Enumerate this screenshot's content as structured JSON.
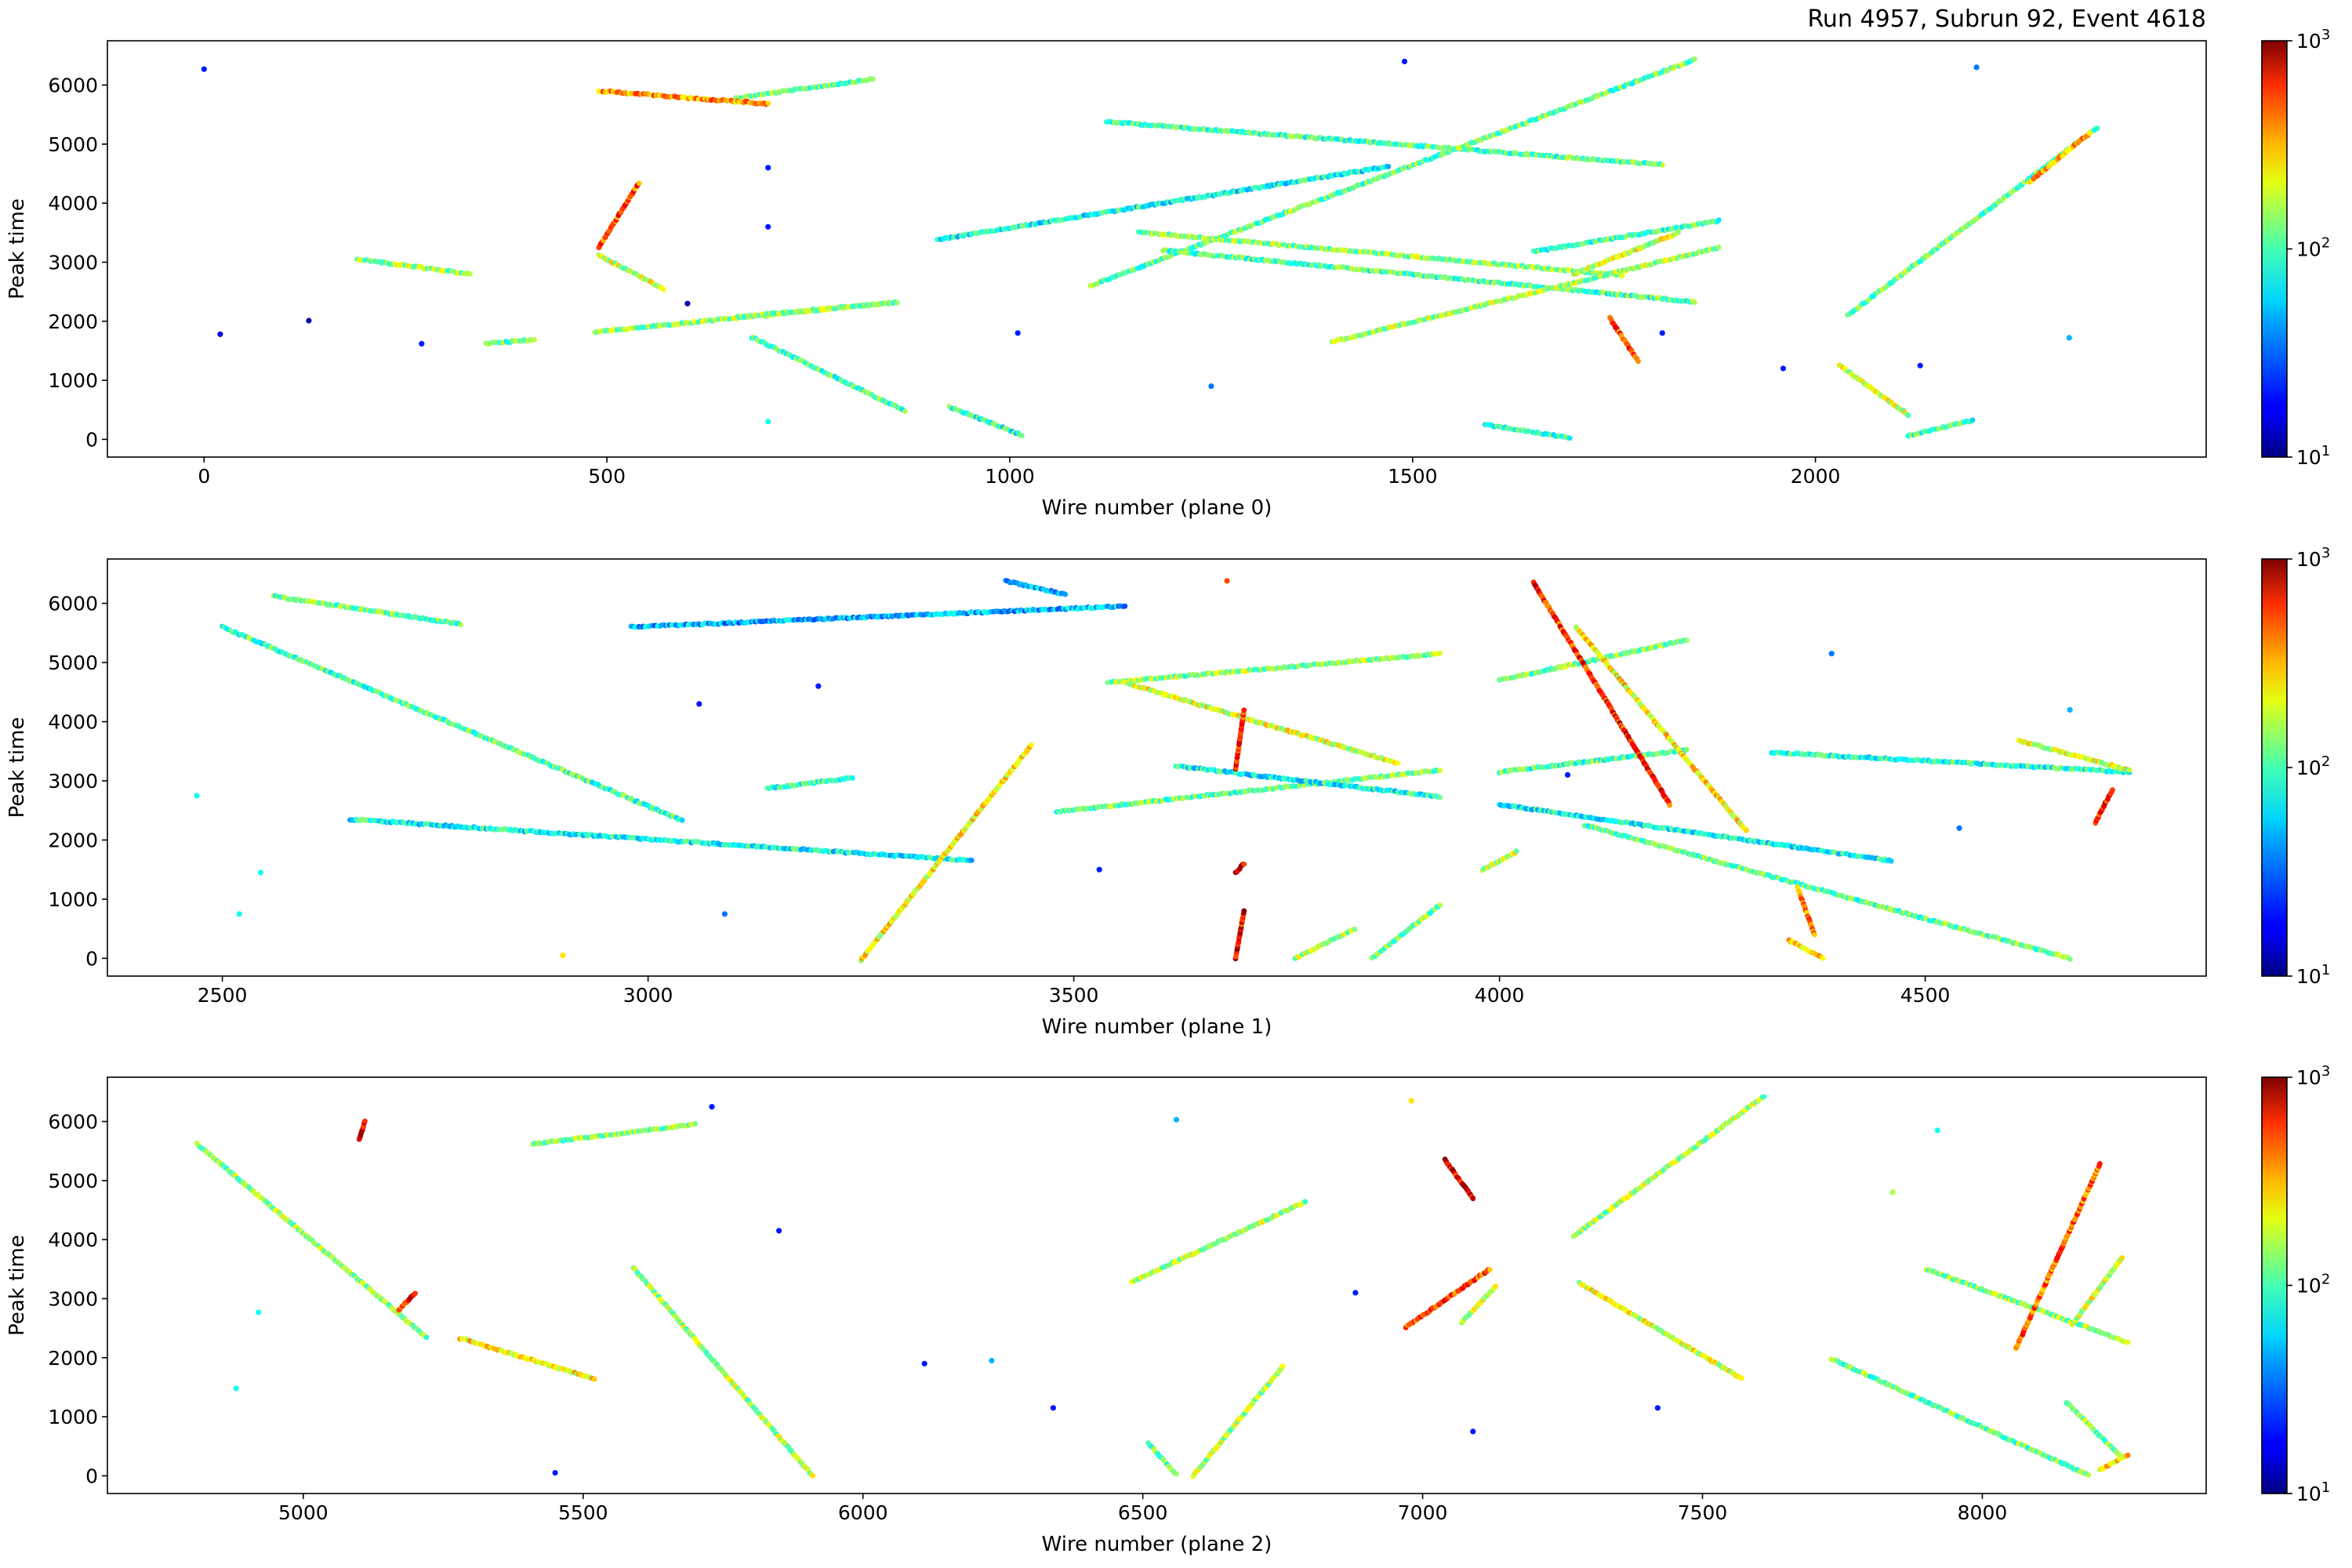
{
  "figure": {
    "title": "Run 4957, Subrun 92, Event 4618"
  },
  "colorbar": {
    "colormap": "jet",
    "scale": "log",
    "range": [
      10,
      1000
    ],
    "tick_labels": [
      {
        "value": 10,
        "base": "10",
        "exp": "1"
      },
      {
        "value": 100,
        "base": "10",
        "exp": "2"
      },
      {
        "value": 1000,
        "base": "10",
        "exp": "3"
      }
    ]
  },
  "chart_data": [
    {
      "type": "scatter",
      "plane": 0,
      "xlabel": "Wire number (plane 0)",
      "ylabel": "Peak time",
      "xlim": [
        -120,
        2485
      ],
      "ylim": [
        -300,
        6750
      ],
      "xticks": [
        0,
        500,
        1000,
        1500,
        2000
      ],
      "yticks": [
        0,
        1000,
        2000,
        3000,
        4000,
        5000,
        6000
      ],
      "tracks": [
        {
          "from": [
            660,
            5780
          ],
          "to": [
            830,
            6100
          ],
          "charge": 90
        },
        {
          "from": [
            1120,
            5380
          ],
          "to": [
            1810,
            4650
          ],
          "charge": 80
        },
        {
          "from": [
            1100,
            2600
          ],
          "to": [
            1850,
            6430
          ],
          "charge": 90
        },
        {
          "from": [
            910,
            3380
          ],
          "to": [
            1470,
            4620
          ],
          "charge": 60
        },
        {
          "from": [
            1160,
            3510
          ],
          "to": [
            1760,
            2780
          ],
          "charge": 110
        },
        {
          "from": [
            1190,
            3200
          ],
          "to": [
            1850,
            2330
          ],
          "charge": 80
        },
        {
          "from": [
            1400,
            1650
          ],
          "to": [
            1880,
            3250
          ],
          "charge": 120
        },
        {
          "from": [
            1650,
            3180
          ],
          "to": [
            1880,
            3700
          ],
          "charge": 80
        },
        {
          "from": [
            1700,
            2800
          ],
          "to": [
            1830,
            3500
          ],
          "charge": 140
        },
        {
          "from": [
            2040,
            2100
          ],
          "to": [
            2350,
            5280
          ],
          "charge": 90
        },
        {
          "from": [
            2265,
            4350
          ],
          "to": [
            2340,
            5180
          ],
          "charge": 280
        },
        {
          "from": [
            190,
            3050
          ],
          "to": [
            330,
            2800
          ],
          "charge": 110
        },
        {
          "from": [
            485,
            1820
          ],
          "to": [
            860,
            2320
          ],
          "charge": 110
        },
        {
          "from": [
            660,
            2070
          ],
          "to": [
            860,
            2320
          ],
          "charge": 110
        },
        {
          "from": [
            680,
            1730
          ],
          "to": [
            870,
            480
          ],
          "charge": 80
        },
        {
          "from": [
            925,
            550
          ],
          "to": [
            1015,
            70
          ],
          "charge": 70
        },
        {
          "from": [
            1590,
            250
          ],
          "to": [
            1695,
            30
          ],
          "charge": 80
        },
        {
          "from": [
            1745,
            2050
          ],
          "to": [
            1780,
            1320
          ],
          "charge": 400
        },
        {
          "from": [
            2030,
            1250
          ],
          "to": [
            2115,
            420
          ],
          "charge": 140
        },
        {
          "from": [
            2115,
            60
          ],
          "to": [
            2195,
            320
          ],
          "charge": 80
        },
        {
          "from": [
            490,
            3250
          ],
          "to": [
            540,
            4350
          ],
          "charge": 400
        },
        {
          "from": [
            490,
            5900
          ],
          "to": [
            700,
            5680
          ],
          "charge": 300
        },
        {
          "from": [
            350,
            1620
          ],
          "to": [
            410,
            1690
          ],
          "charge": 90
        },
        {
          "from": [
            490,
            3120
          ],
          "to": [
            570,
            2550
          ],
          "charge": 140
        }
      ],
      "hits": [
        {
          "x": 0,
          "y": 6270,
          "charge": 20
        },
        {
          "x": 20,
          "y": 1780,
          "charge": 15
        },
        {
          "x": 130,
          "y": 2010,
          "charge": 12
        },
        {
          "x": 270,
          "y": 1620,
          "charge": 20
        },
        {
          "x": 600,
          "y": 2300,
          "charge": 12
        },
        {
          "x": 700,
          "y": 4600,
          "charge": 20
        },
        {
          "x": 700,
          "y": 3600,
          "charge": 20
        },
        {
          "x": 700,
          "y": 300,
          "charge": 60
        },
        {
          "x": 1010,
          "y": 1800,
          "charge": 20
        },
        {
          "x": 1490,
          "y": 6400,
          "charge": 20
        },
        {
          "x": 1810,
          "y": 1800,
          "charge": 20
        },
        {
          "x": 2130,
          "y": 1250,
          "charge": 20
        },
        {
          "x": 2200,
          "y": 6300,
          "charge": 30
        },
        {
          "x": 2315,
          "y": 1720,
          "charge": 40
        },
        {
          "x": 1960,
          "y": 1200,
          "charge": 20
        },
        {
          "x": 1250,
          "y": 900,
          "charge": 30
        }
      ]
    },
    {
      "type": "scatter",
      "plane": 1,
      "xlabel": "Wire number (plane 1)",
      "ylabel": "Peak time",
      "xlim": [
        2365,
        4830
      ],
      "ylim": [
        -300,
        6750
      ],
      "xticks": [
        2500,
        3000,
        3500,
        4000,
        4500
      ],
      "yticks": [
        0,
        1000,
        2000,
        3000,
        4000,
        5000,
        6000
      ],
      "tracks": [
        {
          "from": [
            2560,
            6120
          ],
          "to": [
            2780,
            5650
          ],
          "charge": 90
        },
        {
          "from": [
            2500,
            5600
          ],
          "to": [
            3040,
            2330
          ],
          "charge": 80
        },
        {
          "from": [
            2650,
            2350
          ],
          "to": [
            3380,
            1650
          ],
          "charge": 60
        },
        {
          "from": [
            2980,
            5600
          ],
          "to": [
            3560,
            5950
          ],
          "charge": 40
        },
        {
          "from": [
            3250,
            -30
          ],
          "to": [
            3450,
            3600
          ],
          "charge": 180
        },
        {
          "from": [
            3480,
            2480
          ],
          "to": [
            3930,
            3180
          ],
          "charge": 90
        },
        {
          "from": [
            3540,
            4660
          ],
          "to": [
            3930,
            5150
          ],
          "charge": 110
        },
        {
          "from": [
            3560,
            4660
          ],
          "to": [
            3880,
            3300
          ],
          "charge": 150
        },
        {
          "from": [
            3620,
            3250
          ],
          "to": [
            3930,
            2730
          ],
          "charge": 60
        },
        {
          "from": [
            3420,
            6380
          ],
          "to": [
            3490,
            6150
          ],
          "charge": 40
        },
        {
          "from": [
            4000,
            4700
          ],
          "to": [
            4220,
            5380
          ],
          "charge": 100
        },
        {
          "from": [
            4000,
            3150
          ],
          "to": [
            4220,
            3520
          ],
          "charge": 80
        },
        {
          "from": [
            4040,
            6350
          ],
          "to": [
            4200,
            2600
          ],
          "charge": 500
        },
        {
          "from": [
            4090,
            5600
          ],
          "to": [
            4290,
            2150
          ],
          "charge": 180
        },
        {
          "from": [
            4000,
            2600
          ],
          "to": [
            4460,
            1650
          ],
          "charge": 60
        },
        {
          "from": [
            4100,
            2250
          ],
          "to": [
            4670,
            0
          ],
          "charge": 90
        },
        {
          "from": [
            4320,
            3480
          ],
          "to": [
            4740,
            3150
          ],
          "charge": 70
        },
        {
          "from": [
            4610,
            3680
          ],
          "to": [
            4740,
            3180
          ],
          "charge": 140
        },
        {
          "from": [
            4700,
            2300
          ],
          "to": [
            4720,
            2850
          ],
          "charge": 500
        },
        {
          "from": [
            4350,
            1200
          ],
          "to": [
            4370,
            400
          ],
          "charge": 300
        },
        {
          "from": [
            4340,
            300
          ],
          "to": [
            4380,
            0
          ],
          "charge": 200
        },
        {
          "from": [
            3760,
            0
          ],
          "to": [
            3830,
            500
          ],
          "charge": 120
        },
        {
          "from": [
            3850,
            0
          ],
          "to": [
            3930,
            900
          ],
          "charge": 100
        },
        {
          "from": [
            3980,
            1500
          ],
          "to": [
            4020,
            1800
          ],
          "charge": 130
        },
        {
          "from": [
            3140,
            2870
          ],
          "to": [
            3240,
            3050
          ],
          "charge": 80
        },
        {
          "from": [
            3690,
            0
          ],
          "to": [
            3700,
            800
          ],
          "charge": 600
        },
        {
          "from": [
            3690,
            3200
          ],
          "to": [
            3700,
            4200
          ],
          "charge": 500
        },
        {
          "from": [
            3690,
            1450
          ],
          "to": [
            3700,
            1600
          ],
          "charge": 700
        }
      ],
      "hits": [
        {
          "x": 2470,
          "y": 2750,
          "charge": 60
        },
        {
          "x": 2520,
          "y": 750,
          "charge": 60
        },
        {
          "x": 2545,
          "y": 1450,
          "charge": 60
        },
        {
          "x": 2900,
          "y": 50,
          "charge": 200
        },
        {
          "x": 3060,
          "y": 4300,
          "charge": 20
        },
        {
          "x": 3090,
          "y": 750,
          "charge": 30
        },
        {
          "x": 3200,
          "y": 4600,
          "charge": 20
        },
        {
          "x": 3530,
          "y": 1500,
          "charge": 20
        },
        {
          "x": 4080,
          "y": 3100,
          "charge": 20
        },
        {
          "x": 4390,
          "y": 5150,
          "charge": 30
        },
        {
          "x": 4670,
          "y": 4200,
          "charge": 40
        },
        {
          "x": 4540,
          "y": 2200,
          "charge": 30
        },
        {
          "x": 3680,
          "y": 6380,
          "charge": 400
        }
      ]
    },
    {
      "type": "scatter",
      "plane": 2,
      "xlabel": "Wire number (plane 2)",
      "ylabel": "Peak time",
      "xlim": [
        4650,
        8400
      ],
      "ylim": [
        -300,
        6750
      ],
      "xticks": [
        5000,
        5500,
        6000,
        6500,
        7000,
        7500,
        8000
      ],
      "yticks": [
        0,
        1000,
        2000,
        3000,
        4000,
        5000,
        6000
      ],
      "tracks": [
        {
          "from": [
            4810,
            5620
          ],
          "to": [
            5220,
            2350
          ],
          "charge": 110
        },
        {
          "from": [
            5280,
            2330
          ],
          "to": [
            5520,
            1640
          ],
          "charge": 180
        },
        {
          "from": [
            5410,
            5620
          ],
          "to": [
            5700,
            5950
          ],
          "charge": 100
        },
        {
          "from": [
            5590,
            3520
          ],
          "to": [
            5910,
            0
          ],
          "charge": 120
        },
        {
          "from": [
            6480,
            3280
          ],
          "to": [
            6790,
            4640
          ],
          "charge": 120
        },
        {
          "from": [
            6590,
            0
          ],
          "to": [
            6750,
            1850
          ],
          "charge": 120
        },
        {
          "from": [
            6510,
            550
          ],
          "to": [
            6560,
            20
          ],
          "charge": 90
        },
        {
          "from": [
            6970,
            2520
          ],
          "to": [
            7120,
            3500
          ],
          "charge": 400
        },
        {
          "from": [
            7070,
            2600
          ],
          "to": [
            7130,
            3200
          ],
          "charge": 140
        },
        {
          "from": [
            7040,
            5350
          ],
          "to": [
            7090,
            4700
          ],
          "charge": 600
        },
        {
          "from": [
            7270,
            4060
          ],
          "to": [
            7610,
            6430
          ],
          "charge": 120
        },
        {
          "from": [
            7280,
            3260
          ],
          "to": [
            7570,
            1650
          ],
          "charge": 150
        },
        {
          "from": [
            7730,
            1980
          ],
          "to": [
            8190,
            10
          ],
          "charge": 90
        },
        {
          "from": [
            7900,
            3500
          ],
          "to": [
            8260,
            2260
          ],
          "charge": 110
        },
        {
          "from": [
            8060,
            2150
          ],
          "to": [
            8210,
            5280
          ],
          "charge": 350
        },
        {
          "from": [
            8150,
            1250
          ],
          "to": [
            8250,
            300
          ],
          "charge": 100
        },
        {
          "from": [
            8160,
            2550
          ],
          "to": [
            8250,
            3700
          ],
          "charge": 150
        },
        {
          "from": [
            8210,
            100
          ],
          "to": [
            8260,
            350
          ],
          "charge": 200
        },
        {
          "from": [
            5100,
            5700
          ],
          "to": [
            5110,
            6000
          ],
          "charge": 700
        },
        {
          "from": [
            5170,
            2800
          ],
          "to": [
            5200,
            3100
          ],
          "charge": 500
        }
      ],
      "hits": [
        {
          "x": 4880,
          "y": 1480,
          "charge": 60
        },
        {
          "x": 4920,
          "y": 2770,
          "charge": 60
        },
        {
          "x": 5450,
          "y": 50,
          "charge": 20
        },
        {
          "x": 5730,
          "y": 6250,
          "charge": 20
        },
        {
          "x": 6110,
          "y": 1900,
          "charge": 20
        },
        {
          "x": 6230,
          "y": 1950,
          "charge": 40
        },
        {
          "x": 6340,
          "y": 1150,
          "charge": 20
        },
        {
          "x": 6560,
          "y": 6030,
          "charge": 40
        },
        {
          "x": 6980,
          "y": 6350,
          "charge": 200
        },
        {
          "x": 7090,
          "y": 750,
          "charge": 20
        },
        {
          "x": 7420,
          "y": 1150,
          "charge": 20
        },
        {
          "x": 7840,
          "y": 4800,
          "charge": 120
        },
        {
          "x": 7920,
          "y": 5850,
          "charge": 60
        },
        {
          "x": 5850,
          "y": 4150,
          "charge": 20
        },
        {
          "x": 6880,
          "y": 3100,
          "charge": 20
        }
      ]
    }
  ]
}
